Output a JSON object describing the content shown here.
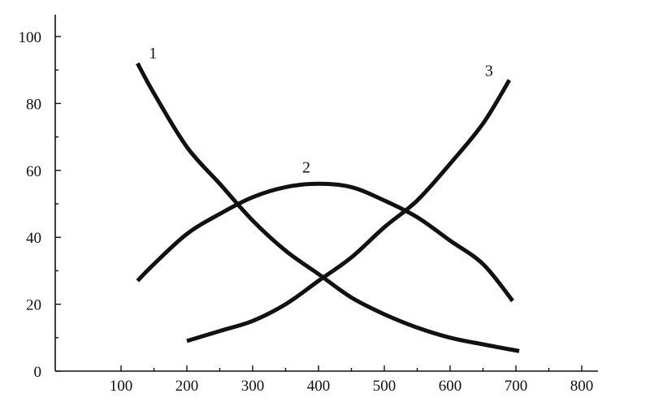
{
  "chart_data": {
    "type": "line",
    "title": "",
    "xlabel": "",
    "ylabel": "",
    "xlim": [
      0,
      800
    ],
    "ylim": [
      0,
      100
    ],
    "x_ticks": [
      100,
      200,
      300,
      400,
      500,
      600,
      700,
      800
    ],
    "y_ticks": [
      0,
      20,
      40,
      60,
      80,
      100
    ],
    "x_tick_labels": [
      "100",
      "200",
      "300",
      "400",
      "500",
      "600",
      "700",
      "800"
    ],
    "y_tick_labels": [
      "0",
      "20",
      "40",
      "60",
      "80",
      "100"
    ],
    "grid": false,
    "legend": "none",
    "series": [
      {
        "label": "1",
        "x": [
          125,
          150,
          200,
          250,
          300,
          350,
          400,
          450,
          500,
          550,
          600,
          650,
          705
        ],
        "y": [
          92,
          83,
          67,
          56,
          45,
          36,
          29,
          22,
          17,
          13,
          10,
          8,
          6
        ]
      },
      {
        "label": "2",
        "x": [
          125,
          150,
          200,
          250,
          300,
          350,
          400,
          450,
          500,
          550,
          600,
          650,
          695
        ],
        "y": [
          27,
          32,
          41,
          47,
          52,
          55,
          56,
          55,
          51,
          46,
          39,
          32,
          21
        ]
      },
      {
        "label": "3",
        "x": [
          200,
          250,
          300,
          350,
          400,
          450,
          500,
          550,
          600,
          650,
          690
        ],
        "y": [
          9,
          12,
          15,
          20,
          27,
          34,
          43,
          51,
          62,
          74,
          87
        ]
      }
    ]
  }
}
